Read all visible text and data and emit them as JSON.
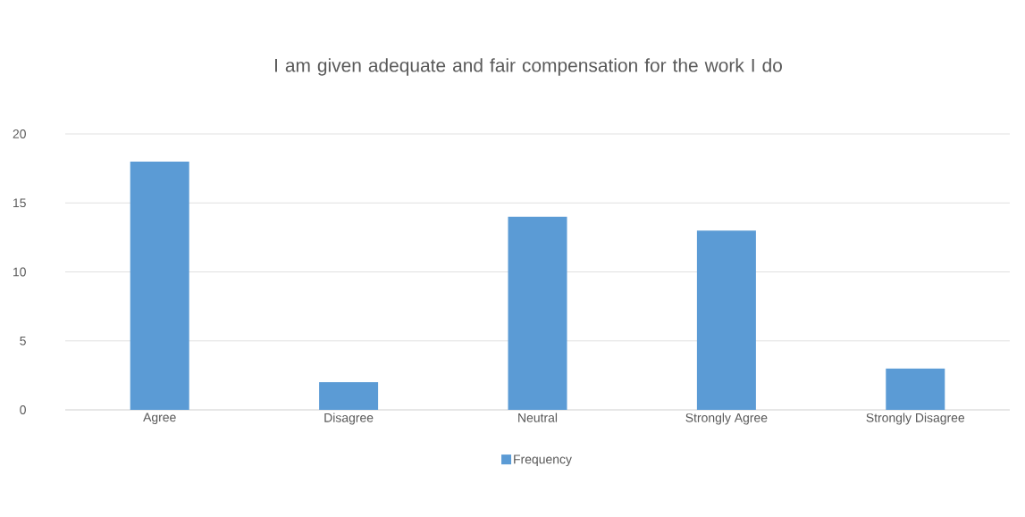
{
  "chart_data": {
    "type": "bar",
    "title": "I am given adequate and fair compensation for the work I do",
    "categories": [
      "Agree",
      "Disagree",
      "Neutral",
      "Strongly Agree",
      "Strongly Disagree"
    ],
    "series": [
      {
        "name": "Frequency",
        "color": "#5b9bd5",
        "values": [
          18,
          2,
          14,
          13,
          3
        ]
      }
    ],
    "ylim": [
      0,
      20
    ],
    "yticks": [
      0,
      5,
      10,
      15,
      20
    ],
    "grid": "y",
    "legend": "bottom"
  }
}
